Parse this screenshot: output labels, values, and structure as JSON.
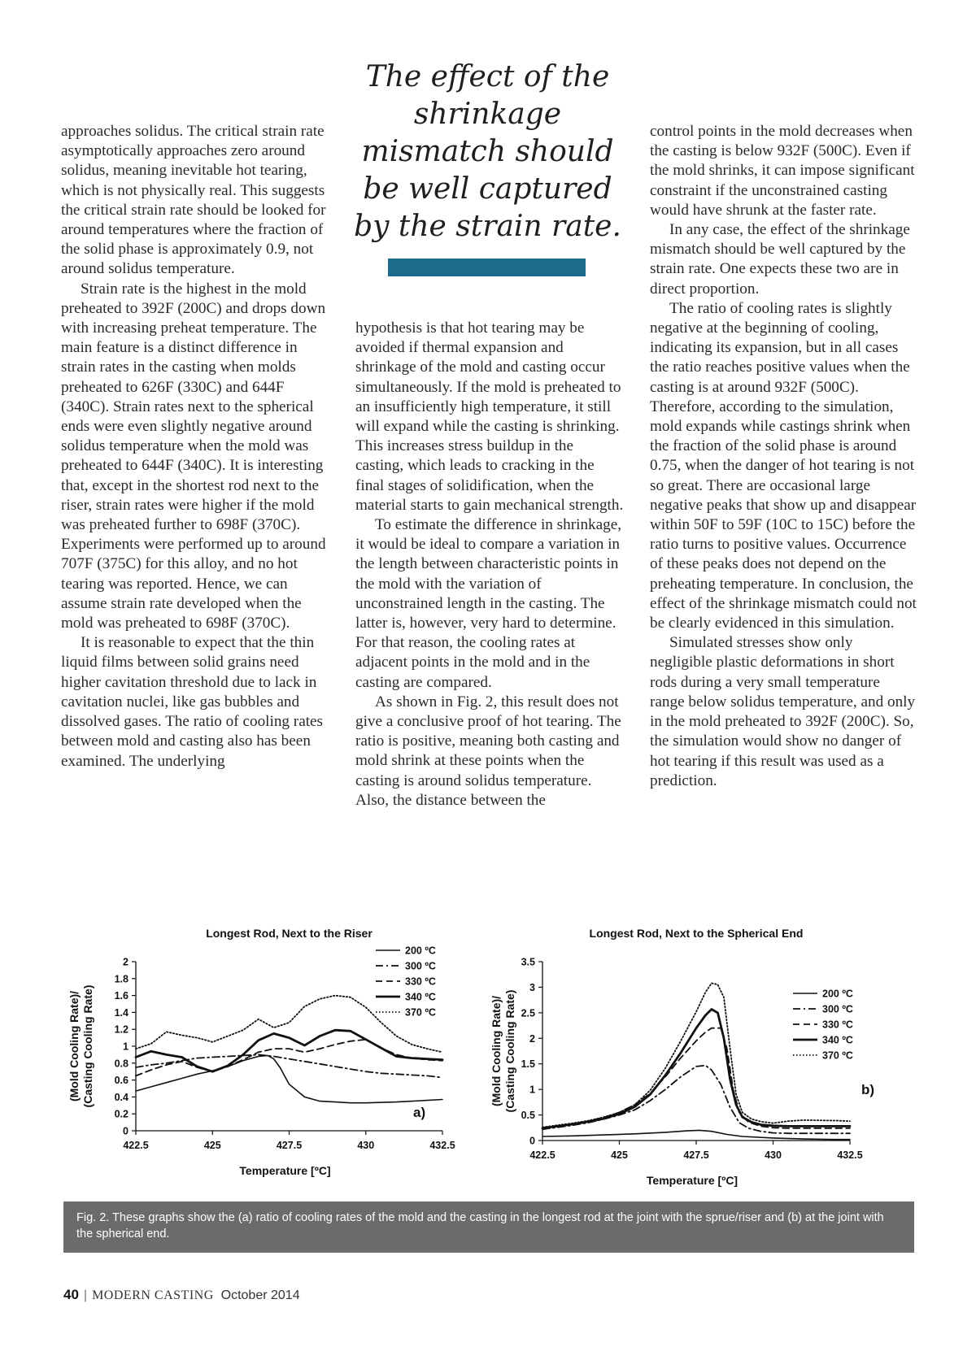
{
  "pull_quote": "The effect of the shrinkage mismatch should be well captured by the strain rate.",
  "columns": {
    "col1": [
      {
        "text": "approaches solidus. The critical strain rate asymptotically approaches zero around solidus, meaning inevitable hot tearing, which is not physically real. This suggests the critical strain rate should be looked for around temperatures where the fraction of the solid phase is approximately 0.9, not around solidus temperature.",
        "indent": false
      },
      {
        "text": "Strain rate is the highest in the mold preheated to 392F (200C) and drops down with increasing preheat temperature. The main feature is a distinct difference in strain rates in the casting when molds preheated to 626F (330C) and 644F (340C). Strain rates next to the spherical ends were even slightly negative around solidus temperature when the mold was preheated to 644F (340C). It is interesting that, except in the shortest rod next to the riser, strain rates were higher if the mold was preheated further to 698F (370C). Experiments were performed up to around 707F (375C) for this alloy, and no hot tearing was reported. Hence, we can assume strain rate developed when the mold was preheated to 698F (370C).",
        "indent": true
      },
      {
        "text": "It is reasonable to expect that the thin liquid films between solid grains need higher cavitation threshold due to lack in cavitation nuclei, like gas bubbles and dissolved gases. The ratio of cooling rates between mold and casting also has been examined. The underlying",
        "indent": true
      }
    ],
    "col2": [
      {
        "text": "hypothesis is that hot tearing may be avoided if thermal expansion and shrinkage of the mold and casting occur simultaneously. If the mold is preheated to an insufficiently high temperature, it still will expand while the casting is shrinking. This increases stress buildup in the casting, which leads to cracking in the final stages of solidification, when the material starts to gain mechanical strength.",
        "indent": false
      },
      {
        "text": "To estimate the difference in shrinkage, it would be ideal to compare a variation in the length between characteristic points in the mold with the variation of unconstrained length in the casting. The latter is, however, very hard to determine. For that reason, the cooling rates at adjacent points in the mold and in the casting are compared.",
        "indent": true
      },
      {
        "text": "As shown in Fig. 2, this result does not give a conclusive proof of hot tearing. The ratio is positive, meaning both casting and mold shrink at these points when the casting is around solidus temperature. Also, the distance between the",
        "indent": true
      }
    ],
    "col3": [
      {
        "text": "control points in the mold decreases when the casting is below 932F (500C). Even if the mold shrinks, it can impose significant constraint if the unconstrained casting would have shrunk at the faster rate.",
        "indent": false
      },
      {
        "text": "In any case, the effect of the shrinkage mismatch should be well captured by the strain rate. One expects these two are in direct proportion.",
        "indent": true
      },
      {
        "text": "The ratio of cooling rates is slightly negative at the beginning of cooling, indicating its expansion, but in all cases the ratio reaches positive values when the casting is at around 932F (500C). Therefore, according to the simulation, mold expands while castings shrink when the fraction of the solid phase is around 0.75, when the danger of hot tearing is not so great. There are occasional large negative peaks that show up and disappear within 50F to 59F (10C to 15C) before the ratio turns to positive values. Occurrence of these peaks does not depend on the preheating temperature. In conclusion, the effect of the shrinkage mismatch could not be clearly evidenced in this simulation.",
        "indent": true
      },
      {
        "text": "Simulated stresses show only negligible plastic deformations in short rods during a very small temperature range below solidus temperature, and only in the mold preheated to 392F (200C). So, the simulation would show no danger of hot tearing if this result was used as a prediction.",
        "indent": true
      }
    ]
  },
  "chart_data": [
    {
      "type": "line",
      "panel": "a)",
      "title": "Longest Rod, Next to the Riser",
      "xlabel": "Temperature [ºC]",
      "ylabel": [
        "(Mold Cooling Rate)/",
        "(Casting Cooling Rate)"
      ],
      "xlim": [
        422.5,
        432.5
      ],
      "ylim": [
        0,
        2
      ],
      "xticks": [
        "422.5",
        "425",
        "427.5",
        "430",
        "432.5"
      ],
      "yticks": [
        "0",
        "0.2",
        "0.4",
        "0.6",
        "0.8",
        "1",
        "1.2",
        "1.4",
        "1.6",
        "1.8",
        "2"
      ],
      "legend_position": "top-right",
      "series": [
        {
          "name": "200 ºC",
          "style": "solid-thin",
          "x": [
            422.5,
            423.0,
            423.5,
            424.0,
            424.5,
            425.0,
            425.5,
            426.0,
            426.5,
            426.8,
            427.0,
            427.2,
            427.5,
            428.0,
            428.5,
            429.0,
            429.5,
            430.0,
            431.0,
            432.0,
            432.5
          ],
          "y": [
            0.47,
            0.52,
            0.57,
            0.62,
            0.67,
            0.71,
            0.76,
            0.83,
            0.88,
            0.89,
            0.85,
            0.75,
            0.55,
            0.4,
            0.35,
            0.34,
            0.33,
            0.33,
            0.34,
            0.36,
            0.37
          ]
        },
        {
          "name": "300 ºC",
          "style": "dashdot",
          "x": [
            422.5,
            423.0,
            423.5,
            424.0,
            424.5,
            425.0,
            425.5,
            426.0,
            426.5,
            427.0,
            427.5,
            428.0,
            428.5,
            429.0,
            429.5,
            430.0,
            430.5,
            431.0,
            431.5,
            432.0,
            432.5
          ],
          "y": [
            0.75,
            0.78,
            0.8,
            0.83,
            0.86,
            0.87,
            0.88,
            0.89,
            0.9,
            0.88,
            0.85,
            0.82,
            0.79,
            0.76,
            0.73,
            0.7,
            0.68,
            0.67,
            0.66,
            0.65,
            0.63
          ]
        },
        {
          "name": "330 ºC",
          "style": "dashed",
          "x": [
            422.5,
            423.0,
            423.5,
            424.0,
            424.5,
            425.0,
            425.5,
            426.0,
            426.5,
            427.0,
            427.5,
            428.0,
            428.5,
            429.0,
            429.5,
            430.0,
            430.5,
            431.0,
            431.5,
            432.0,
            432.5
          ],
          "y": [
            0.65,
            0.72,
            0.78,
            0.82,
            0.75,
            0.7,
            0.76,
            0.84,
            0.93,
            0.97,
            0.97,
            0.93,
            0.97,
            1.02,
            1.06,
            1.08,
            0.98,
            0.9,
            0.86,
            0.84,
            0.83
          ]
        },
        {
          "name": "340 ºC",
          "style": "solid-thick",
          "x": [
            422.5,
            423.0,
            423.5,
            424.0,
            424.5,
            425.0,
            425.5,
            426.0,
            426.5,
            427.0,
            427.5,
            428.0,
            428.5,
            429.0,
            429.5,
            430.0,
            430.5,
            431.0,
            431.5,
            432.0,
            432.5
          ],
          "y": [
            0.87,
            0.94,
            0.9,
            0.87,
            0.76,
            0.7,
            0.77,
            0.9,
            1.07,
            1.15,
            1.1,
            1.01,
            1.12,
            1.19,
            1.18,
            1.08,
            0.98,
            0.88,
            0.86,
            0.85,
            0.84
          ]
        },
        {
          "name": "370 ºC",
          "style": "dotted",
          "x": [
            422.5,
            423.0,
            423.5,
            424.0,
            424.5,
            425.0,
            425.5,
            426.0,
            426.5,
            427.0,
            427.5,
            428.0,
            428.5,
            429.0,
            429.5,
            430.0,
            430.5,
            431.0,
            431.5,
            432.0,
            432.5
          ],
          "y": [
            0.97,
            1.03,
            1.17,
            1.13,
            1.1,
            1.05,
            1.12,
            1.19,
            1.32,
            1.22,
            1.28,
            1.47,
            1.56,
            1.6,
            1.58,
            1.46,
            1.28,
            1.12,
            1.02,
            0.97,
            0.93
          ]
        }
      ]
    },
    {
      "type": "line",
      "panel": "b)",
      "title": "Longest Rod, Next to the Spherical End",
      "xlabel": "Temperature [ºC]",
      "ylabel": [
        "(Mold Cooling Rate)/",
        "(Casting Cooling Rate)"
      ],
      "xlim": [
        422.5,
        432.5
      ],
      "ylim": [
        0,
        3.5
      ],
      "xticks": [
        "422.5",
        "425",
        "427.5",
        "430",
        "432.5"
      ],
      "yticks": [
        "0",
        "0.5",
        "1",
        "1.5",
        "2",
        "2.5",
        "3",
        "3.5"
      ],
      "legend_position": "right",
      "series": [
        {
          "name": "200 ºC",
          "style": "solid-thin",
          "x": [
            422.5,
            423.5,
            424.5,
            425.5,
            426.5,
            427.2,
            427.6,
            428.0,
            428.5,
            429.0,
            430.0,
            431.0,
            432.0,
            432.5
          ],
          "y": [
            0.08,
            0.09,
            0.11,
            0.13,
            0.16,
            0.19,
            0.2,
            0.18,
            0.12,
            0.08,
            0.05,
            0.03,
            0.02,
            0.02
          ]
        },
        {
          "name": "300 ºC",
          "style": "dashdot",
          "x": [
            422.5,
            423.0,
            423.5,
            424.0,
            424.5,
            425.0,
            425.5,
            426.0,
            426.5,
            427.0,
            427.5,
            427.8,
            428.0,
            428.3,
            428.6,
            428.9,
            429.2,
            429.6,
            430.0,
            430.5,
            431.0,
            432.0,
            432.5
          ],
          "y": [
            0.22,
            0.26,
            0.3,
            0.35,
            0.42,
            0.5,
            0.6,
            0.78,
            1.0,
            1.25,
            1.45,
            1.47,
            1.38,
            1.1,
            0.65,
            0.35,
            0.24,
            0.18,
            0.15,
            0.14,
            0.14,
            0.14,
            0.14
          ]
        },
        {
          "name": "330 ºC",
          "style": "dashed",
          "x": [
            422.5,
            423.0,
            423.5,
            424.0,
            424.5,
            425.0,
            425.5,
            426.0,
            426.5,
            427.0,
            427.5,
            427.8,
            428.0,
            428.3,
            428.5,
            428.7,
            428.9,
            429.2,
            429.6,
            430.0,
            430.5,
            431.0,
            432.0,
            432.5
          ],
          "y": [
            0.25,
            0.29,
            0.33,
            0.38,
            0.45,
            0.55,
            0.7,
            0.92,
            1.25,
            1.62,
            1.95,
            2.12,
            2.2,
            2.2,
            1.8,
            1.0,
            0.55,
            0.36,
            0.28,
            0.25,
            0.24,
            0.24,
            0.24,
            0.24
          ]
        },
        {
          "name": "340 ºC",
          "style": "solid-thick",
          "x": [
            422.5,
            423.0,
            423.5,
            424.0,
            424.5,
            425.0,
            425.5,
            426.0,
            426.5,
            427.0,
            427.5,
            427.8,
            428.0,
            428.2,
            428.4,
            428.6,
            428.8,
            429.0,
            429.3,
            429.6,
            430.0,
            430.5,
            431.0,
            432.0,
            432.5
          ],
          "y": [
            0.24,
            0.28,
            0.32,
            0.37,
            0.43,
            0.52,
            0.66,
            0.9,
            1.28,
            1.72,
            2.2,
            2.45,
            2.57,
            2.5,
            2.0,
            1.2,
            0.7,
            0.46,
            0.36,
            0.31,
            0.29,
            0.28,
            0.28,
            0.28,
            0.28
          ]
        },
        {
          "name": "370 ºC",
          "style": "dotted",
          "x": [
            422.5,
            423.0,
            423.5,
            424.0,
            424.5,
            425.0,
            425.5,
            426.0,
            426.5,
            427.0,
            427.5,
            427.8,
            428.0,
            428.2,
            428.4,
            428.6,
            428.8,
            429.0,
            429.3,
            429.6,
            430.0,
            430.5,
            431.0,
            432.0,
            432.5
          ],
          "y": [
            0.26,
            0.3,
            0.34,
            0.39,
            0.46,
            0.55,
            0.7,
            0.98,
            1.42,
            1.95,
            2.52,
            2.9,
            3.08,
            3.05,
            2.8,
            1.8,
            0.9,
            0.55,
            0.42,
            0.37,
            0.34,
            0.38,
            0.4,
            0.39,
            0.38
          ]
        }
      ]
    }
  ],
  "caption": "Fig. 2. These graphs show the (a) ratio of cooling rates of the mold and the casting in the longest rod at the joint with the sprue/riser and (b) at the joint with the spherical end.",
  "footer": {
    "page_number": "40",
    "magazine": "MODERN CASTING",
    "issue": "October 2014"
  }
}
